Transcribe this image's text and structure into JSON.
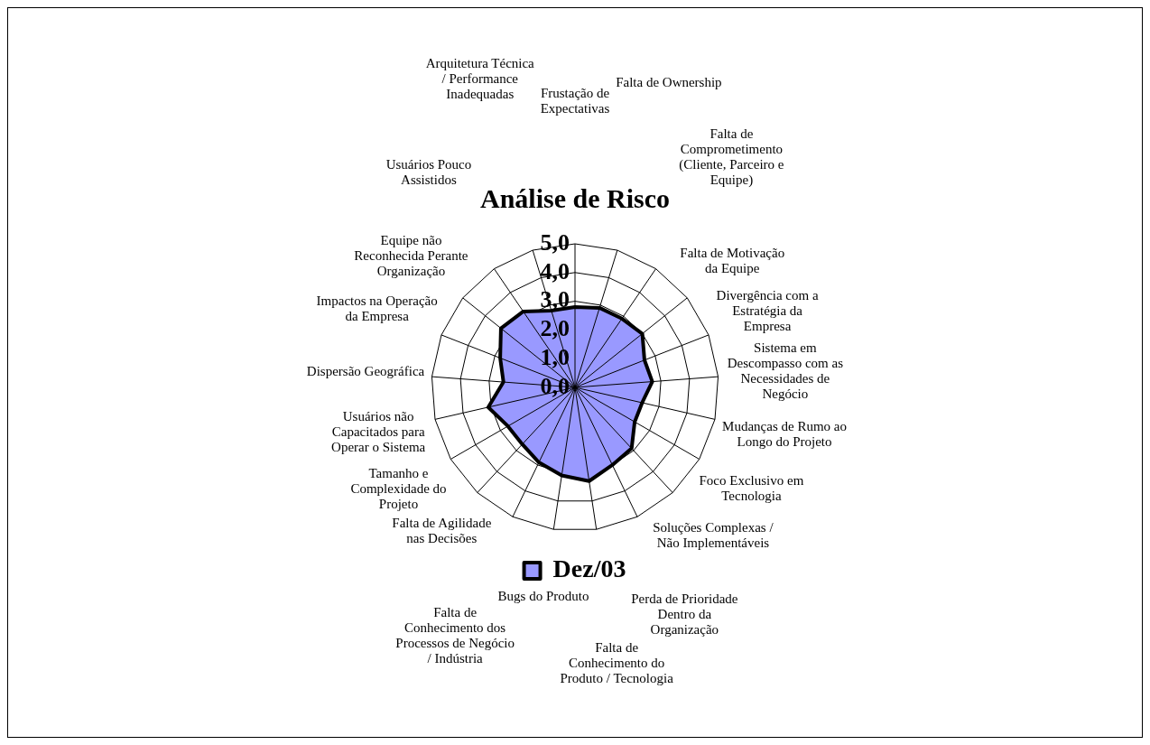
{
  "chart_data": {
    "type": "radar",
    "title": "Análise de Risco",
    "categories": [
      "Frustação de Expectativas",
      "Falta de Ownership",
      "Falta de Comprometimento (Cliente, Parceiro e Equipe)",
      "Falta de Motivação da Equipe",
      "Divergência com a Estratégia da Empresa",
      "Sistema em Descompasso com as Necessidades de Negócio",
      "Mudanças de Rumo ao Longo do Projeto",
      "Foco Exclusivo em Tecnologia",
      "Soluções Complexas / Não Implementáveis",
      "Perda de Prioridade Dentro da Organização",
      "Falta de Conhecimento do Produto / Tecnologia",
      "Bugs do Produto",
      "Falta de Conhecimento dos Processos de Negócio / Indústria",
      "Falta de Agilidade nas Decisões",
      "Tamanho e Complexidade do Projeto",
      "Usuários não Capacitados para Operar o Sistema",
      "Dispersão Geográfica",
      "Impactos na Operação da Empresa",
      "Equipe não Reconhecida Perante Organização",
      "Usuários Pouco Assistidos",
      "Arquitetura Técnica / Performance Inadequadas"
    ],
    "series": [
      {
        "name": "Dez/03",
        "color": "#9999ff",
        "values": [
          2.8,
          2.9,
          2.9,
          3.0,
          2.6,
          2.7,
          2.4,
          2.4,
          2.9,
          3.0,
          3.3,
          3.1,
          2.9,
          2.7,
          2.7,
          3.1,
          2.5,
          2.8,
          3.3,
          3.2,
          2.8
        ]
      }
    ],
    "ylim": [
      0,
      5
    ],
    "yticks": [
      {
        "value": 0,
        "label": "0,0"
      },
      {
        "value": 1,
        "label": "1,0"
      },
      {
        "value": 2,
        "label": "2,0"
      },
      {
        "value": 3,
        "label": "3,0"
      },
      {
        "value": 4,
        "label": "4,0"
      },
      {
        "value": 5,
        "label": "5,0"
      }
    ],
    "grid": true,
    "legend": "bottom"
  }
}
